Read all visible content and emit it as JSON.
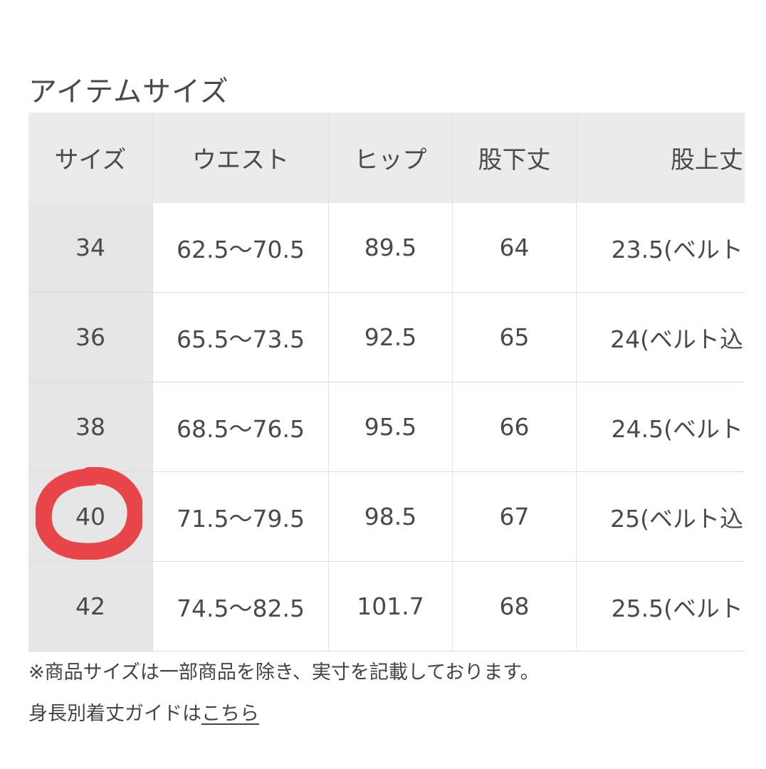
{
  "title": "アイテムサイズ",
  "table": {
    "headers": [
      "サイズ",
      "ウエスト",
      "ヒップ",
      "股下丈",
      "股上丈"
    ],
    "rows": [
      [
        "34",
        "62.5〜70.5",
        "89.5",
        "64",
        "23.5(ベルト"
      ],
      [
        "36",
        "65.5〜73.5",
        "92.5",
        "65",
        "24(ベルト込"
      ],
      [
        "38",
        "68.5〜76.5",
        "95.5",
        "66",
        "24.5(ベルト"
      ],
      [
        "40",
        "71.5〜79.5",
        "98.5",
        "67",
        "25(ベルト込"
      ],
      [
        "42",
        "74.5〜82.5",
        "101.7",
        "68",
        "25.5(ベルト"
      ]
    ]
  },
  "note": "※商品サイズは一部商品を除き、実寸を記載しております。",
  "guide": {
    "text": "身長別着丈ガイドは",
    "link": "こちら"
  },
  "annotation": {
    "circled_size": "40",
    "color": "#e8454a"
  }
}
